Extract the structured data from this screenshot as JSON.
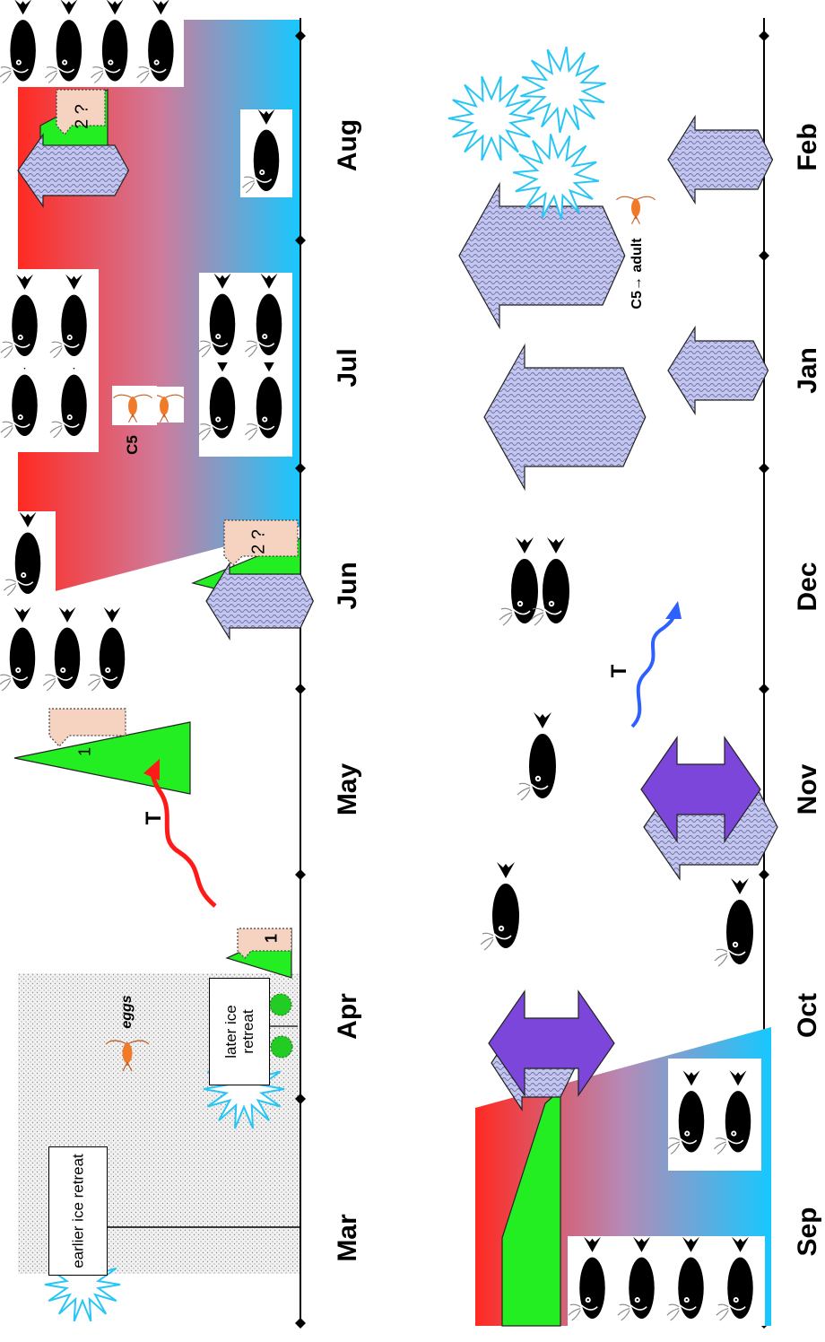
{
  "timeline_top": {
    "months": [
      "Mar",
      "Apr",
      "May",
      "Jun",
      "Jul",
      "Aug"
    ]
  },
  "timeline_bottom": {
    "months": [
      "Sep",
      "Oct",
      "Nov",
      "Dec",
      "Jan",
      "Feb"
    ]
  },
  "labels": {
    "earlier_ice_retreat": "earlier ice retreat",
    "later_ice_retreat": "later ice retreat",
    "eggs": "eggs",
    "temperature_top": "T",
    "temperature_bottom": "T",
    "c5": "C5",
    "c5_adult": "C5→ adult",
    "bloom_1_first": "1",
    "bloom_1_second": "1",
    "bloom_2_first": "2 ?",
    "bloom_2_second": "2 ?"
  },
  "colors": {
    "warm_layer": "#ff2a22",
    "cold_layer": "#17c8ff",
    "phytoplankton": "#22ee22",
    "bloom_tag": "#f5d3c0",
    "ice_pattern": "#e6e6e6",
    "vertical_flux_arrow": "#b8bbe6",
    "mixing_arrow": "#7b46d9",
    "temperature_arrow_top": "#ff1a1a",
    "temperature_arrow_bottom": "#2e5fff",
    "starburst_outline": "#29c5f5",
    "copepod": "#f07a2a",
    "eggs_dot": "#22cc22"
  },
  "icons": [
    "fish-icon",
    "copepod-icon",
    "starburst-icon",
    "double-arrow-icon",
    "flux-arrow-icon",
    "temperature-arrow-icon"
  ]
}
